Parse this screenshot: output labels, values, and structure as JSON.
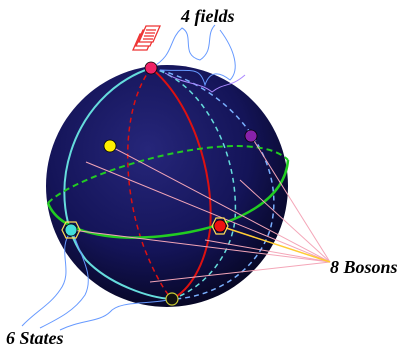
{
  "labels": {
    "fields": "4 fields",
    "bosons": "8 Bosons",
    "states": "6 States"
  },
  "colors": {
    "sphere_dark": "#0a0a3a",
    "sphere_mid": "#1a1a6a",
    "equator": "#22cc22",
    "meridian_red": "#dd1111",
    "meridian_cyan": "#66dddd",
    "meridian_blue": "#7ab0ff",
    "pink_lines": "#f4a6b8",
    "wire_blue": "#6699ff",
    "point_red": "#ee1111",
    "point_yellow": "#ffee00",
    "point_purple": "#8822aa",
    "point_cyan": "#44dddd",
    "point_black": "#111111",
    "point_pink": "#ee2266",
    "doc_icon": "#ee3333"
  }
}
